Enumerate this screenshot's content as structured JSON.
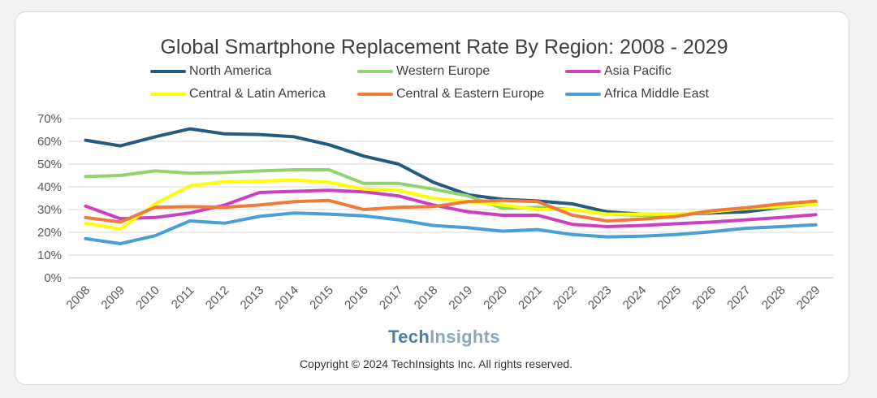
{
  "brand": {
    "part1": "Tech",
    "part2": "Insights"
  },
  "copyright": "Copyright © 2024 TechInsights Inc.  All rights reserved.",
  "chart_data": {
    "type": "line",
    "title": "Global Smartphone Replacement Rate By Region: 2008 - 2029",
    "xlabel": "",
    "ylabel": "",
    "ylim": [
      0,
      70
    ],
    "y_ticks": [
      "0%",
      "10%",
      "20%",
      "30%",
      "40%",
      "50%",
      "60%",
      "70%"
    ],
    "grid": true,
    "legend_position": "top",
    "categories": [
      "2008",
      "2009",
      "2010",
      "2011",
      "2012",
      "2013",
      "2014",
      "2015",
      "2016",
      "2017",
      "2018",
      "2019",
      "2020",
      "2021",
      "2022",
      "2023",
      "2024",
      "2025",
      "2026",
      "2027",
      "2028",
      "2029"
    ],
    "series": [
      {
        "name": "North America",
        "color": "#245b7e",
        "values": [
          60.5,
          58,
          62,
          65.5,
          63.3,
          63,
          62,
          58.5,
          53.5,
          50,
          42,
          36.5,
          34.5,
          33.8,
          32.5,
          29,
          28,
          28,
          28.5,
          29,
          31,
          33
        ]
      },
      {
        "name": "Western Europe",
        "color": "#92d36e",
        "values": [
          44.5,
          45,
          47,
          46,
          46.3,
          47,
          47.5,
          47.5,
          41.5,
          41.5,
          39,
          36,
          30.5,
          31,
          30,
          28,
          27.5,
          27.5,
          29,
          30.5,
          31,
          32.5
        ]
      },
      {
        "name": "Asia Pacific",
        "color": "#cc3fc2",
        "values": [
          31.5,
          26,
          26.5,
          28.5,
          32,
          37.5,
          38,
          38.5,
          37.8,
          36,
          32,
          29,
          27.5,
          27.5,
          23.5,
          22.5,
          23,
          23.8,
          24.5,
          25.5,
          26.5,
          27.8
        ]
      },
      {
        "name": "Central & Latin America",
        "color": "#ffff00",
        "values": [
          24,
          21.5,
          32.5,
          40.5,
          42.3,
          42.5,
          43,
          42,
          39,
          38.5,
          35,
          33.5,
          32,
          30,
          30,
          28,
          28,
          28,
          29,
          30.5,
          31.5,
          32.5
        ]
      },
      {
        "name": "Central & Eastern Europe",
        "color": "#f07a3a",
        "values": [
          26.5,
          24.5,
          31,
          31.3,
          31,
          32,
          33.5,
          34,
          30,
          31,
          31.3,
          33.5,
          34,
          33.5,
          27.5,
          25,
          25.8,
          27,
          29.5,
          30.8,
          32.5,
          33.7
        ]
      },
      {
        "name": "Africa Middle East",
        "color": "#4a9fd7",
        "values": [
          17.2,
          15,
          18.5,
          25,
          24,
          27,
          28.5,
          28,
          27.2,
          25.5,
          23,
          22,
          20.5,
          21.2,
          19,
          18,
          18.3,
          19,
          20.3,
          21.8,
          22.5,
          23.3
        ]
      }
    ]
  }
}
